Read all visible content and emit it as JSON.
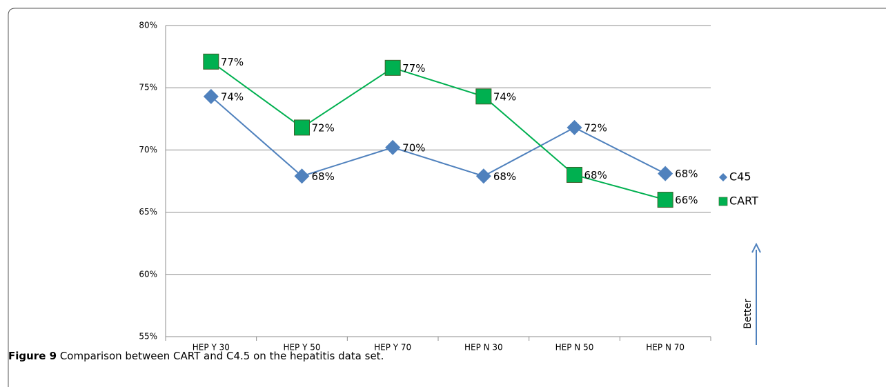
{
  "chart_data": {
    "type": "line",
    "categories": [
      "HEP Y 30",
      "HEP Y 50",
      "HEP Y 70",
      "HEP N 30",
      "HEP N 50",
      "HEP N 70"
    ],
    "series": [
      {
        "name": "C45",
        "color": "#4f81bd",
        "marker": "diamond",
        "values": [
          74.3,
          67.9,
          70.2,
          67.9,
          71.8,
          68.1
        ],
        "value_labels": [
          "74%",
          "68%",
          "70%",
          "68%",
          "72%",
          "68%"
        ]
      },
      {
        "name": "CART",
        "color": "#00b050",
        "marker": "square",
        "values": [
          77.1,
          71.8,
          76.6,
          74.3,
          68.0,
          66.0
        ],
        "value_labels": [
          "77%",
          "72%",
          "77%",
          "74%",
          "68%",
          "66%"
        ]
      }
    ],
    "ylim": [
      55,
      80
    ],
    "yticks": [
      {
        "value": 55,
        "label": "55%"
      },
      {
        "value": 60,
        "label": "60%"
      },
      {
        "value": 65,
        "label": "65%"
      },
      {
        "value": 70,
        "label": "70%"
      },
      {
        "value": 75,
        "label": "75%"
      },
      {
        "value": 80,
        "label": "80%"
      }
    ],
    "grid": true,
    "legend": "right",
    "annotation": "Better"
  },
  "caption": {
    "label": "Figure 9",
    "text": "Comparison between CART and C4.5 on the hepatitis data set."
  }
}
